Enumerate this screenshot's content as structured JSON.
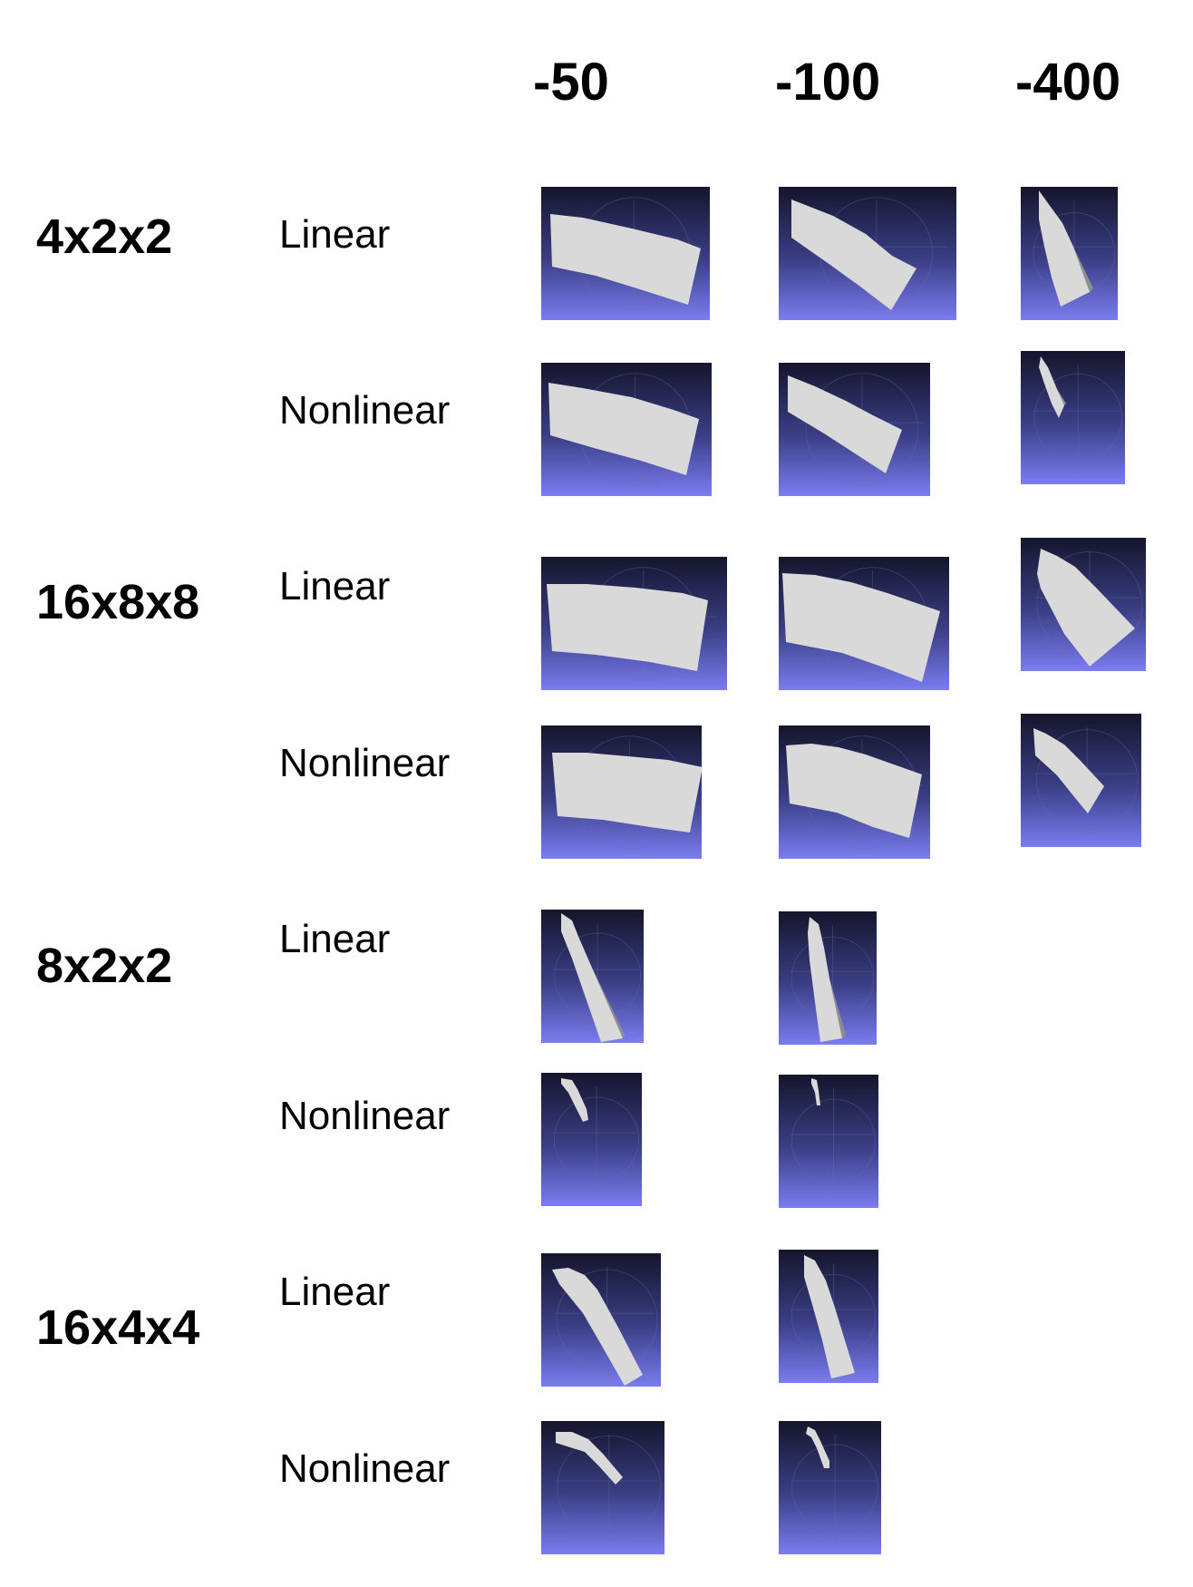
{
  "columns": [
    "-50",
    "-100",
    "-400"
  ],
  "groups": [
    {
      "mesh": "4x2x2",
      "rows": [
        {
          "type": "Linear"
        },
        {
          "type": "Nonlinear"
        }
      ]
    },
    {
      "mesh": "16x8x8",
      "rows": [
        {
          "type": "Linear"
        },
        {
          "type": "Nonlinear"
        }
      ]
    },
    {
      "mesh": "8x2x2",
      "rows": [
        {
          "type": "Linear"
        },
        {
          "type": "Nonlinear"
        }
      ]
    },
    {
      "mesh": "16x4x4",
      "rows": [
        {
          "type": "Linear"
        },
        {
          "type": "Nonlinear"
        }
      ]
    }
  ],
  "colors": {
    "tile_top": "#15152c",
    "tile_mid": "#3a3f86",
    "tile_bottom": "#7b7cf0",
    "beam": "#d9d9d9",
    "beam_shadow": "#8e8e8e",
    "grid": "#6a6fa8"
  }
}
